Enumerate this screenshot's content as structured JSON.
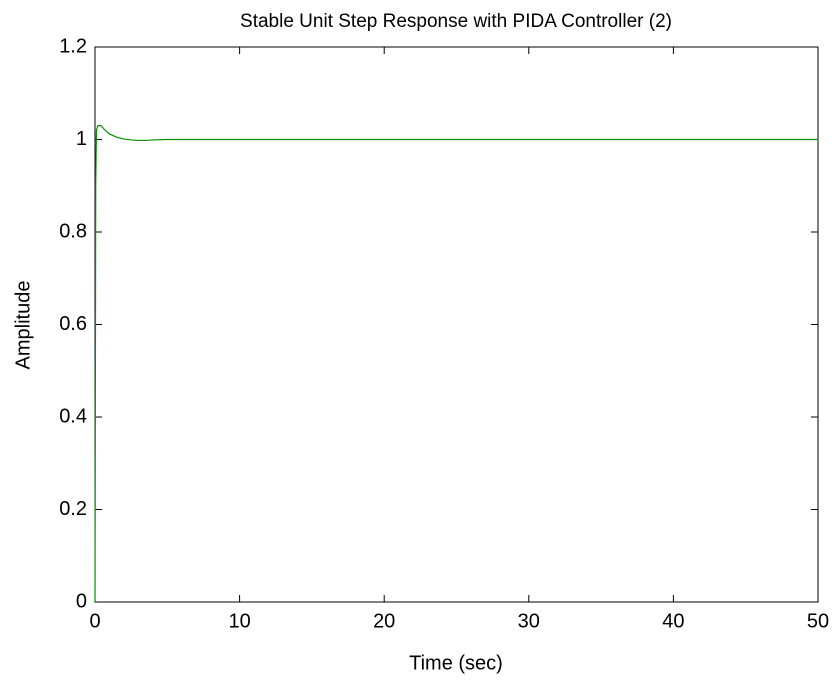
{
  "chart_data": {
    "type": "line",
    "title": "Stable Unit Step Response with PIDA Controller (2)",
    "x_label": "Time (sec)",
    "y_label": "Amplitude",
    "x": [
      0,
      0.05,
      0.1,
      0.2,
      0.4,
      0.7,
      1.0,
      1.5,
      2.0,
      2.5,
      3,
      3.5,
      4,
      5,
      10,
      20,
      30,
      40,
      50
    ],
    "series": [
      {
        "color": "#009000",
        "values": [
          0,
          0.9,
          1.02,
          1.03,
          1.03,
          1.02,
          1.012,
          1.005,
          1.001,
          0.999,
          0.998,
          0.998,
          0.999,
          1,
          1,
          1,
          1,
          1,
          1
        ]
      }
    ],
    "xlim": [
      0,
      50
    ],
    "xticks": [
      0,
      10,
      20,
      30,
      40,
      50
    ],
    "ylim": [
      0,
      1.2
    ],
    "yticks": [
      0,
      0.2,
      0.4,
      0.6,
      0.8,
      1,
      1.2
    ],
    "grid": false
  }
}
